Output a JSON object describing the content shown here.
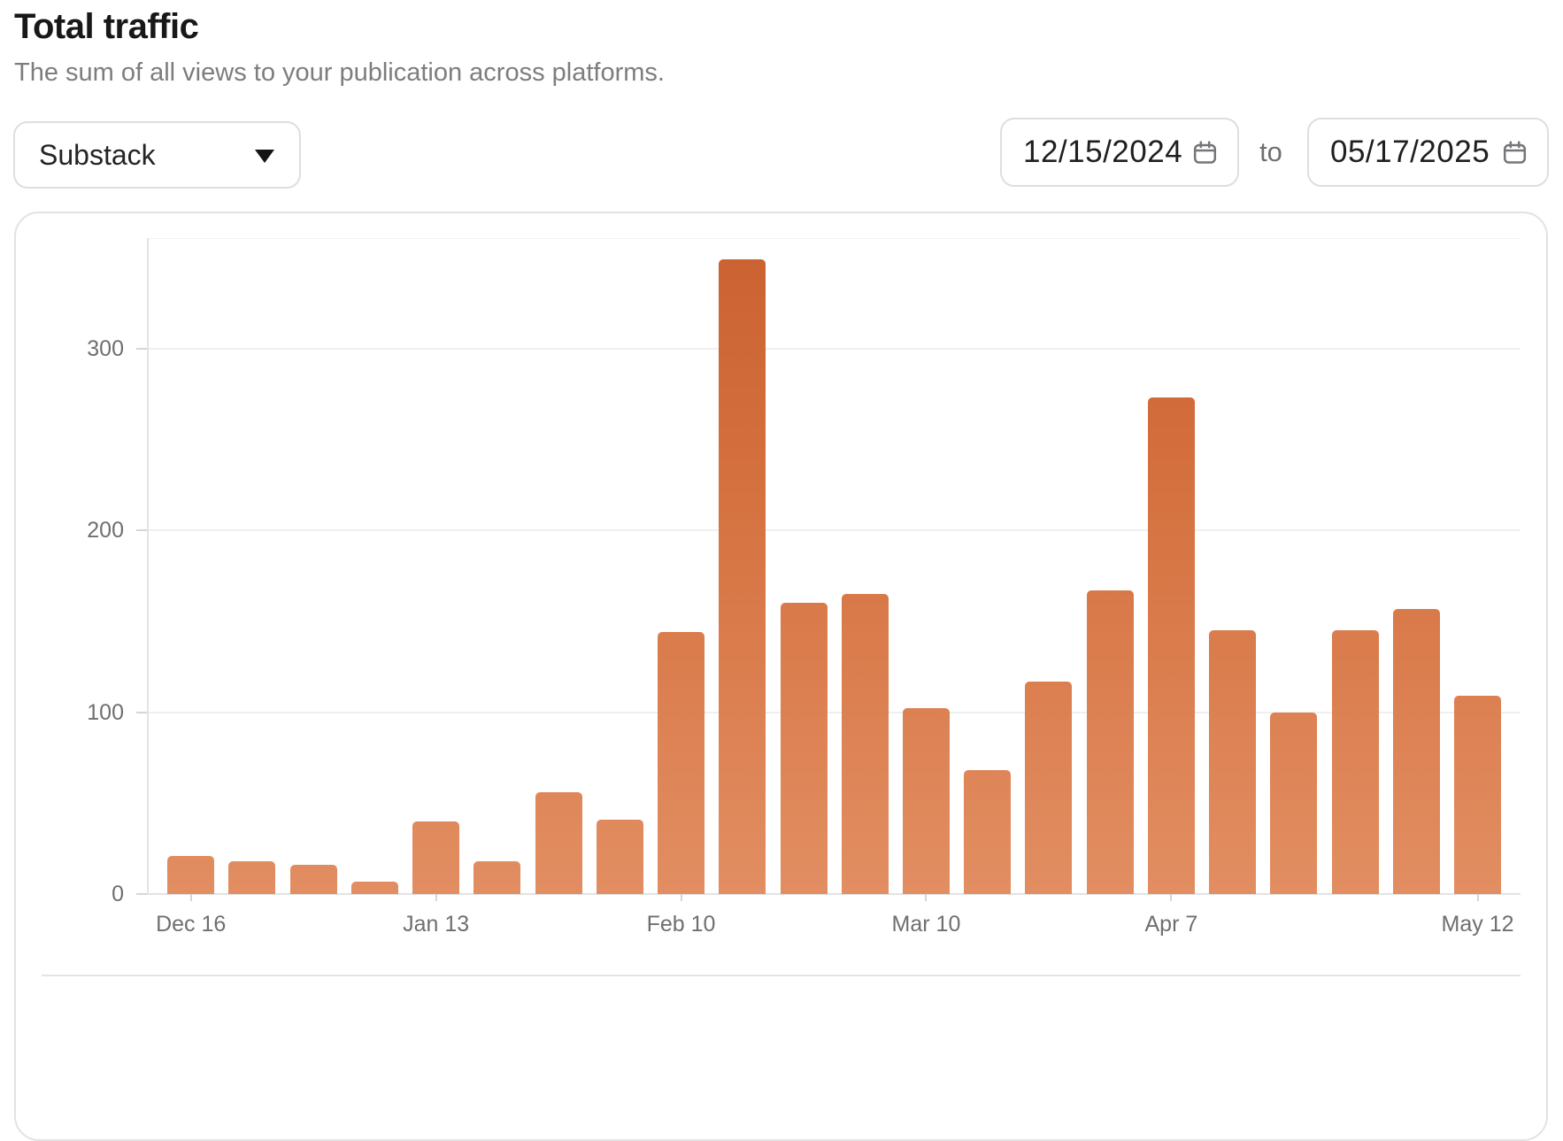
{
  "header": {
    "title": "Total traffic",
    "subtitle": "The sum of all views to your publication across platforms."
  },
  "controls": {
    "platform_select": {
      "value": "Substack",
      "icon": "chevron-down-icon"
    },
    "date_from": "12/15/2024",
    "range_separator": "to",
    "date_to": "05/17/2025",
    "date_icon": "calendar-icon"
  },
  "chart_data": {
    "type": "bar",
    "title": "Total traffic",
    "series_name": "Views",
    "values": [
      21,
      18,
      16,
      7,
      40,
      18,
      56,
      41,
      144,
      349,
      160,
      165,
      102,
      68,
      117,
      167,
      273,
      145,
      100,
      145,
      157,
      109
    ],
    "x_tick_labels": [
      {
        "label": "Dec 16",
        "bar": 0
      },
      {
        "label": "Jan 13",
        "bar": 4
      },
      {
        "label": "Feb 10",
        "bar": 8
      },
      {
        "label": "Mar 10",
        "bar": 12
      },
      {
        "label": "Apr 7",
        "bar": 16
      },
      {
        "label": "May 12",
        "bar": 21
      }
    ],
    "y_ticks": [
      0,
      100,
      200,
      300
    ],
    "ylim": [
      0,
      360
    ],
    "xlabel": "",
    "ylabel": "",
    "grid": true,
    "legend": false,
    "bar_color_top": "#ca6130",
    "bar_color_bottom": "#e28e62"
  }
}
